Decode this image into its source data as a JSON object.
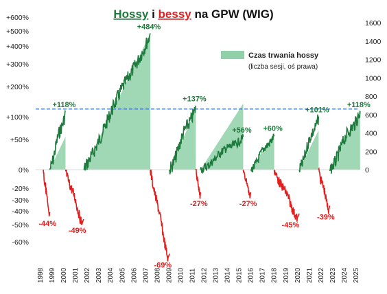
{
  "chart_data": {
    "type": "line",
    "title": {
      "part1": "Hossy",
      "part2": " i ",
      "part3": "bessy",
      "part4": " na GPW (WIG)"
    },
    "colors": {
      "bull": "#1e7a3c",
      "bear": "#e21d1d",
      "area": "#8fd0a8",
      "refline": "#2f5fb0",
      "title_dark": "#111111"
    },
    "legend": {
      "label": "Czas trwania hossy",
      "sublabel": "(liczba sesji, oś prawa)",
      "position": "top-right"
    },
    "x_ticks": [
      "1998",
      "1999",
      "2000",
      "2001",
      "2002",
      "2003",
      "2004",
      "2005",
      "2006",
      "2007",
      "2008",
      "2009",
      "2010",
      "2011",
      "2012",
      "2013",
      "2014",
      "2015",
      "2016",
      "2017",
      "2018",
      "2019",
      "2020",
      "2021",
      "2022",
      "2023",
      "2024",
      "2025"
    ],
    "y_left_ticks": [
      "+600%",
      "+500%",
      "+400%",
      "+300%",
      "+200%",
      "+100%",
      "+50%",
      "0%",
      "-20%",
      "-30%",
      "-40%",
      "-50%",
      "-60%"
    ],
    "y_right_ticks": [
      "1600",
      "1400",
      "1200",
      "1000",
      "800",
      "600",
      "400",
      "200",
      "0"
    ],
    "y_right_range": [
      0,
      1600
    ],
    "reference_line": {
      "right_value": 660,
      "style": "dashed"
    },
    "bull_markets": [
      {
        "start": 1998.85,
        "end": 2000.2,
        "gain": "+118%",
        "gain_value": 118,
        "duration": 360
      },
      {
        "start": 2001.75,
        "end": 2007.45,
        "gain": "+484%",
        "gain_value": 484,
        "duration": 1480
      },
      {
        "start": 2009.1,
        "end": 2011.35,
        "gain": "+137%",
        "gain_value": 137,
        "duration": 660
      },
      {
        "start": 2011.75,
        "end": 2015.4,
        "gain": "+56%",
        "gain_value": 56,
        "duration": 720
      },
      {
        "start": 2016.05,
        "end": 2018.05,
        "gain": "+60%",
        "gain_value": 60,
        "duration": 400
      },
      {
        "start": 2020.2,
        "end": 2021.85,
        "gain": "+101%",
        "gain_value": 101,
        "duration": 430
      },
      {
        "start": 2022.8,
        "end": 2025.4,
        "gain": "+118%",
        "gain_value": 118,
        "duration": 660
      }
    ],
    "bear_markets": [
      {
        "start": 1998.3,
        "end": 1998.85,
        "loss": "-44%",
        "loss_value": -44
      },
      {
        "start": 2000.2,
        "end": 2001.75,
        "loss": "-49%",
        "loss_value": -49
      },
      {
        "start": 2007.45,
        "end": 2009.1,
        "loss": "-69%",
        "loss_value": -69
      },
      {
        "start": 2011.35,
        "end": 2011.75,
        "loss": "-27%",
        "loss_value": -27
      },
      {
        "start": 2015.4,
        "end": 2016.05,
        "loss": "-27%",
        "loss_value": -27
      },
      {
        "start": 2018.05,
        "end": 2020.2,
        "loss": "-45%",
        "loss_value": -45
      },
      {
        "start": 2021.85,
        "end": 2022.8,
        "loss": "-39%",
        "loss_value": -39
      }
    ]
  }
}
